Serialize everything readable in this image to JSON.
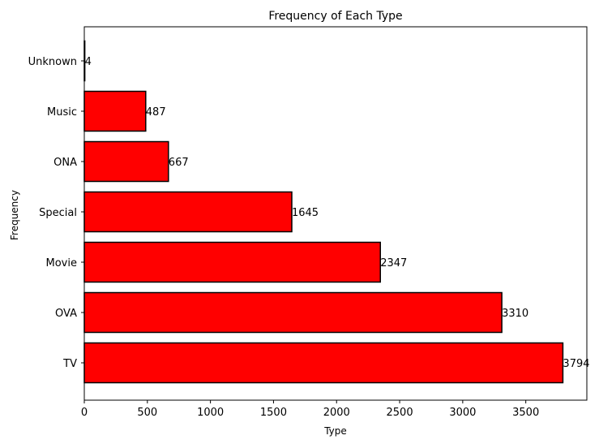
{
  "chart_data": {
    "type": "bar",
    "orientation": "horizontal",
    "title": "Frequency of Each Type",
    "xlabel": "Type",
    "ylabel": "Frequency",
    "categories": [
      "TV",
      "OVA",
      "Movie",
      "Special",
      "ONA",
      "Music",
      "Unknown"
    ],
    "values": [
      3794,
      3310,
      2347,
      1645,
      667,
      487,
      4
    ],
    "data_labels": [
      "3794",
      "3310",
      "2347",
      "1645",
      "667",
      "487",
      "4"
    ],
    "xlim": [
      0,
      3984
    ],
    "xticks": [
      0,
      500,
      1000,
      1500,
      2000,
      2500,
      3000,
      3500
    ],
    "xtick_labels": [
      "0",
      "500",
      "1000",
      "1500",
      "2000",
      "2500",
      "3000",
      "3500"
    ],
    "grid": false,
    "bar_color": "#ff0000",
    "edge_color": "#000000"
  }
}
